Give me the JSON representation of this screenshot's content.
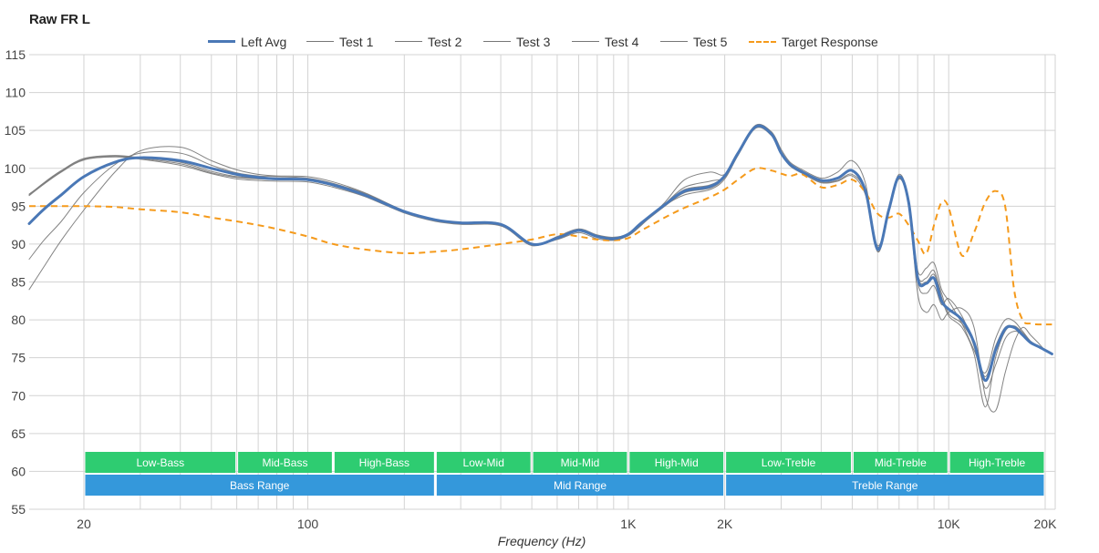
{
  "chart_data": {
    "type": "line",
    "title": "Raw FR L",
    "xlabel": "Frequency (Hz)",
    "ylabel": "",
    "xscale": "log",
    "xlim": [
      13.5,
      21500
    ],
    "ylim": [
      55,
      115
    ],
    "grid": true,
    "legend_position": "top-center",
    "yticks": [
      55,
      60,
      65,
      70,
      75,
      80,
      85,
      90,
      95,
      100,
      105,
      110,
      115
    ],
    "xticks": [
      {
        "value": 20,
        "label": "20"
      },
      {
        "value": 100,
        "label": "100"
      },
      {
        "value": 1000,
        "label": "1K"
      },
      {
        "value": 2000,
        "label": "2K"
      },
      {
        "value": 10000,
        "label": "10K"
      },
      {
        "value": 20000,
        "label": "20K"
      }
    ],
    "x": [
      13.5,
      15,
      17,
      20,
      25,
      30,
      40,
      50,
      60,
      70,
      80,
      100,
      120,
      150,
      200,
      250,
      300,
      400,
      500,
      600,
      700,
      800,
      900,
      1000,
      1100,
      1300,
      1500,
      1800,
      2000,
      2200,
      2500,
      2800,
      3000,
      3200,
      3500,
      4000,
      4500,
      5000,
      5500,
      6000,
      6500,
      7000,
      7500,
      8000,
      8500,
      9000,
      9500,
      10000,
      11000,
      12000,
      13000,
      14000,
      15000,
      16000,
      17000,
      18000,
      19000,
      20000,
      21000
    ],
    "series": [
      {
        "name": "Left Avg",
        "style": "avg",
        "values": [
          92.7,
          94.6,
          96.5,
          98.9,
          100.8,
          101.4,
          101.0,
          100.0,
          99.2,
          98.8,
          98.6,
          98.5,
          97.8,
          96.5,
          94.3,
          93.2,
          92.8,
          92.6,
          90.0,
          90.8,
          91.8,
          91.0,
          90.7,
          91.3,
          92.8,
          95.2,
          97.0,
          97.6,
          99.0,
          102.0,
          105.5,
          104.5,
          102.0,
          100.5,
          99.5,
          98.4,
          98.7,
          99.7,
          97.0,
          89.3,
          94.5,
          98.9,
          95.5,
          85.5,
          84.8,
          85.5,
          82.5,
          81.4,
          80.0,
          77.0,
          72.0,
          76.0,
          78.8,
          79.0,
          78.0,
          77.0,
          76.5,
          76.0,
          75.5
        ]
      },
      {
        "name": "Test 1",
        "style": "test",
        "values": [
          84.0,
          87.0,
          90.5,
          94.5,
          99.5,
          102.3,
          102.8,
          101.0,
          99.8,
          99.2,
          99.0,
          98.9,
          98.2,
          96.8,
          94.4,
          93.2,
          92.8,
          92.6,
          90.0,
          90.6,
          91.5,
          90.7,
          90.5,
          91.1,
          92.5,
          95.5,
          98.5,
          99.5,
          99.2,
          102.0,
          105.6,
          104.8,
          102.5,
          100.8,
          99.8,
          98.7,
          99.5,
          101.0,
          98.0,
          89.0,
          94.5,
          99.2,
          95.5,
          83.5,
          81.0,
          82.0,
          80.0,
          81.0,
          81.5,
          79.0,
          70.0,
          68.0,
          73.0,
          77.0,
          79.0,
          78.0,
          77.0,
          76.0,
          75.5
        ]
      },
      {
        "name": "Test 2",
        "style": "test",
        "values": [
          96.6,
          98.0,
          99.6,
          101.2,
          101.6,
          101.3,
          100.6,
          99.4,
          98.8,
          98.6,
          98.5,
          98.4,
          97.7,
          96.4,
          94.2,
          93.1,
          92.7,
          92.5,
          89.9,
          90.9,
          91.9,
          91.1,
          90.8,
          91.2,
          92.6,
          95.0,
          96.8,
          97.4,
          98.8,
          101.8,
          105.4,
          104.4,
          102.0,
          100.4,
          99.4,
          98.2,
          98.4,
          99.2,
          96.8,
          89.6,
          94.4,
          98.7,
          95.4,
          86.5,
          86.8,
          87.5,
          84.0,
          82.5,
          79.5,
          76.0,
          73.0,
          77.5,
          80.0,
          79.8,
          78.5,
          77.2,
          76.6,
          76.0,
          75.5
        ]
      },
      {
        "name": "Test 3",
        "style": "test",
        "values": [
          88.0,
          90.5,
          93.0,
          96.8,
          100.5,
          102.0,
          102.0,
          100.4,
          99.4,
          99.0,
          98.9,
          98.7,
          98.0,
          96.7,
          94.4,
          93.2,
          92.8,
          92.6,
          90.1,
          90.7,
          91.7,
          90.9,
          90.6,
          91.2,
          92.7,
          95.3,
          97.5,
          98.3,
          98.9,
          101.9,
          105.5,
          104.6,
          102.2,
          100.6,
          99.6,
          98.5,
          98.8,
          99.8,
          97.2,
          89.0,
          94.6,
          99.0,
          95.6,
          85.0,
          83.5,
          84.5,
          82.0,
          82.8,
          80.5,
          76.5,
          71.0,
          74.0,
          77.5,
          78.5,
          78.0,
          77.0,
          76.5,
          76.0,
          75.5
        ]
      },
      {
        "name": "Test 4",
        "style": "test",
        "values": [
          96.4,
          97.9,
          99.5,
          101.1,
          101.5,
          101.2,
          100.4,
          99.3,
          98.6,
          98.4,
          98.3,
          98.2,
          97.5,
          96.3,
          94.1,
          93.0,
          92.6,
          92.4,
          89.8,
          91.0,
          92.0,
          91.2,
          90.9,
          91.4,
          92.9,
          95.1,
          96.5,
          97.2,
          98.6,
          101.7,
          105.3,
          104.3,
          101.9,
          100.3,
          99.3,
          98.1,
          98.3,
          99.0,
          96.5,
          89.8,
          94.3,
          98.6,
          95.3,
          86.0,
          85.5,
          86.5,
          83.0,
          80.5,
          79.0,
          75.5,
          68.5,
          75.0,
          78.5,
          79.2,
          78.3,
          77.1,
          76.5,
          76.0,
          75.5
        ]
      },
      {
        "name": "Test 5",
        "style": "test",
        "values": [
          96.5,
          98.1,
          99.7,
          101.3,
          101.7,
          101.4,
          100.8,
          99.6,
          98.9,
          98.7,
          98.6,
          98.6,
          97.9,
          96.6,
          94.3,
          93.2,
          92.8,
          92.7,
          90.0,
          90.8,
          91.8,
          91.0,
          90.7,
          91.3,
          92.8,
          95.2,
          97.2,
          97.8,
          99.1,
          102.1,
          105.7,
          104.7,
          102.1,
          100.6,
          99.6,
          98.4,
          98.8,
          99.6,
          96.9,
          89.4,
          94.5,
          98.8,
          95.5,
          85.8,
          85.0,
          86.0,
          83.5,
          80.8,
          79.5,
          76.8,
          72.5,
          76.5,
          79.0,
          79.1,
          78.1,
          77.0,
          76.4,
          76.0,
          75.5
        ]
      },
      {
        "name": "Target Response",
        "style": "target",
        "values": [
          95.0,
          95.0,
          95.0,
          95.0,
          94.9,
          94.6,
          94.2,
          93.5,
          93.0,
          92.5,
          92.0,
          91.0,
          90.0,
          89.3,
          88.8,
          89.0,
          89.3,
          90.0,
          90.6,
          91.3,
          91.0,
          90.6,
          90.5,
          90.8,
          91.8,
          93.5,
          94.8,
          96.2,
          97.2,
          98.5,
          100.0,
          99.7,
          99.3,
          99.0,
          99.2,
          97.5,
          97.8,
          98.5,
          96.8,
          94.0,
          93.5,
          94.0,
          92.5,
          90.5,
          88.7,
          92.5,
          95.5,
          94.8,
          88.5,
          91.5,
          95.5,
          97.0,
          95.0,
          84.0,
          80.0,
          79.5,
          79.4,
          79.4,
          79.4
        ]
      }
    ],
    "bands": [
      {
        "label": "Low-Bass",
        "from": 20,
        "to": 60,
        "row": 1
      },
      {
        "label": "Mid-Bass",
        "from": 60,
        "to": 120,
        "row": 1
      },
      {
        "label": "High-Bass",
        "from": 120,
        "to": 250,
        "row": 1
      },
      {
        "label": "Low-Mid",
        "from": 250,
        "to": 500,
        "row": 1
      },
      {
        "label": "Mid-Mid",
        "from": 500,
        "to": 1000,
        "row": 1
      },
      {
        "label": "High-Mid",
        "from": 1000,
        "to": 2000,
        "row": 1
      },
      {
        "label": "Low-Treble",
        "from": 2000,
        "to": 5000,
        "row": 1
      },
      {
        "label": "Mid-Treble",
        "from": 5000,
        "to": 10000,
        "row": 1
      },
      {
        "label": "High-Treble",
        "from": 10000,
        "to": 20000,
        "row": 1
      },
      {
        "label": "Bass Range",
        "from": 20,
        "to": 250,
        "row": 2
      },
      {
        "label": "Mid Range",
        "from": 250,
        "to": 2000,
        "row": 2
      },
      {
        "label": "Treble Range",
        "from": 2000,
        "to": 20000,
        "row": 2
      }
    ],
    "colors": {
      "avg": "#4a78b6",
      "test": "#777777",
      "target": "#f59a1b",
      "band_row1": "#2ecc71",
      "band_row2": "#3498db",
      "grid": "#d3d3d3"
    }
  }
}
